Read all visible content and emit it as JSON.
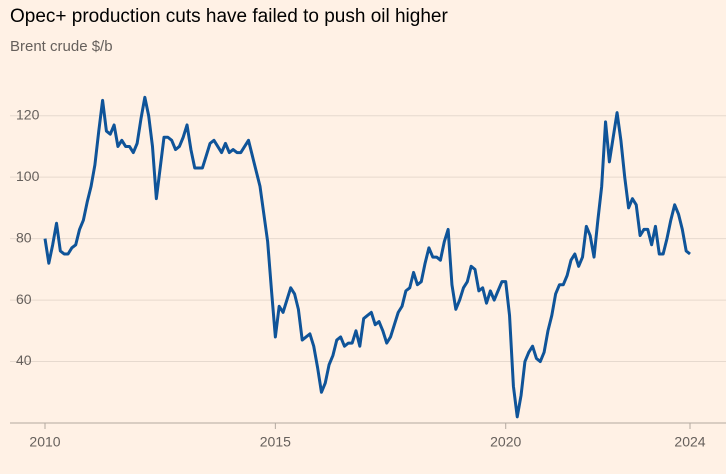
{
  "chart_data": {
    "type": "line",
    "title": "Opec+ production cuts have failed to push oil higher",
    "subtitle": "Brent crude $/b",
    "xlim": [
      2010,
      2024
    ],
    "xticks": [
      2010,
      2015,
      2020,
      2024
    ],
    "ylim": [
      20,
      130
    ],
    "yticks": [
      40,
      60,
      80,
      100,
      120
    ],
    "grid": true,
    "series": [
      {
        "name": "Brent crude",
        "color": "#0f5499",
        "x": [
          2010,
          2010.083,
          2010.167,
          2010.25,
          2010.333,
          2010.417,
          2010.5,
          2010.583,
          2010.667,
          2010.75,
          2010.833,
          2010.917,
          2011,
          2011.083,
          2011.167,
          2011.25,
          2011.333,
          2011.417,
          2011.5,
          2011.583,
          2011.667,
          2011.75,
          2011.833,
          2011.917,
          2012,
          2012.083,
          2012.167,
          2012.25,
          2012.333,
          2012.417,
          2012.5,
          2012.583,
          2012.667,
          2012.75,
          2012.833,
          2012.917,
          2013,
          2013.083,
          2013.167,
          2013.25,
          2013.333,
          2013.417,
          2013.5,
          2013.583,
          2013.667,
          2013.75,
          2013.833,
          2013.917,
          2014,
          2014.083,
          2014.167,
          2014.25,
          2014.333,
          2014.417,
          2014.5,
          2014.583,
          2014.667,
          2014.75,
          2014.833,
          2014.917,
          2015,
          2015.083,
          2015.167,
          2015.25,
          2015.333,
          2015.417,
          2015.5,
          2015.583,
          2015.667,
          2015.75,
          2015.833,
          2015.917,
          2016,
          2016.083,
          2016.167,
          2016.25,
          2016.333,
          2016.417,
          2016.5,
          2016.583,
          2016.667,
          2016.75,
          2016.833,
          2016.917,
          2017,
          2017.083,
          2017.167,
          2017.25,
          2017.333,
          2017.417,
          2017.5,
          2017.583,
          2017.667,
          2017.75,
          2017.833,
          2017.917,
          2018,
          2018.083,
          2018.167,
          2018.25,
          2018.333,
          2018.417,
          2018.5,
          2018.583,
          2018.667,
          2018.75,
          2018.833,
          2018.917,
          2019,
          2019.083,
          2019.167,
          2019.25,
          2019.333,
          2019.417,
          2019.5,
          2019.583,
          2019.667,
          2019.75,
          2019.833,
          2019.917,
          2020,
          2020.083,
          2020.167,
          2020.25,
          2020.333,
          2020.417,
          2020.5,
          2020.583,
          2020.667,
          2020.75,
          2020.833,
          2020.917,
          2021,
          2021.083,
          2021.167,
          2021.25,
          2021.333,
          2021.417,
          2021.5,
          2021.583,
          2021.667,
          2021.75,
          2021.833,
          2021.917,
          2022,
          2022.083,
          2022.167,
          2022.25,
          2022.333,
          2022.417,
          2022.5,
          2022.583,
          2022.667,
          2022.75,
          2022.833,
          2022.917,
          2023,
          2023.083,
          2023.167,
          2023.25,
          2023.333,
          2023.417,
          2023.5,
          2023.583,
          2023.667,
          2023.75,
          2023.833,
          2023.917,
          2024
        ],
        "values": [
          80,
          72,
          78,
          85,
          76,
          75,
          75,
          77,
          78,
          83,
          86,
          92,
          97,
          104,
          115,
          125,
          115,
          114,
          117,
          110,
          112,
          110,
          110,
          108,
          111,
          119,
          126,
          120,
          110,
          93,
          103,
          113,
          113,
          112,
          109,
          110,
          113,
          117,
          109,
          103,
          103,
          103,
          107,
          111,
          112,
          110,
          108,
          111,
          108,
          109,
          108,
          108,
          110,
          112,
          107,
          102,
          97,
          88,
          79,
          63,
          48,
          58,
          56,
          60,
          64,
          62,
          57,
          47,
          48,
          49,
          45,
          38,
          30,
          33,
          39,
          42,
          47,
          48,
          45,
          46,
          46,
          50,
          45,
          54,
          55,
          56,
          52,
          53,
          50,
          46,
          48,
          52,
          56,
          58,
          63,
          64,
          69,
          65,
          66,
          72,
          77,
          74,
          74,
          73,
          79,
          83,
          65,
          57,
          60,
          64,
          66,
          71,
          70,
          63,
          64,
          59,
          63,
          60,
          63,
          66,
          66,
          55,
          32,
          22,
          29,
          40,
          43,
          45,
          41,
          40,
          43,
          50,
          55,
          62,
          65,
          65,
          68,
          73,
          75,
          71,
          74,
          84,
          81,
          74,
          86,
          97,
          118,
          105,
          113,
          121,
          112,
          100,
          90,
          93,
          91,
          81,
          83,
          83,
          78,
          84,
          75,
          75,
          80,
          86,
          91,
          88,
          83,
          76,
          75
        ]
      }
    ]
  }
}
